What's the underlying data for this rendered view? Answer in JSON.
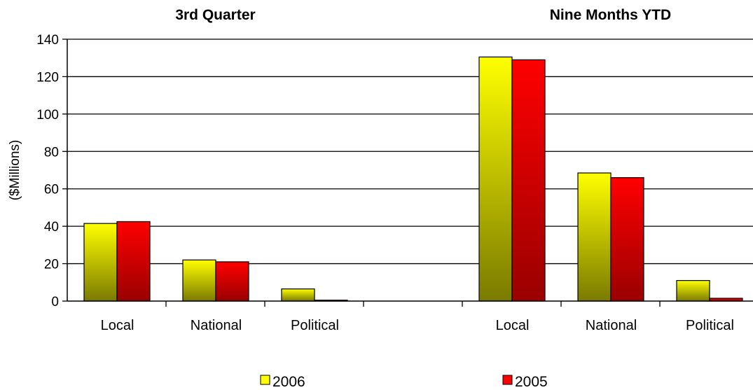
{
  "chart_data": {
    "type": "bar",
    "ylabel": "($Millions)",
    "ylim": [
      0,
      140
    ],
    "yticks": [
      0,
      20,
      40,
      60,
      80,
      100,
      120,
      140
    ],
    "grid": true,
    "legend_position": "bottom",
    "groups": [
      {
        "title": "3rd Quarter",
        "categories": [
          "Local",
          "National",
          "Political"
        ]
      },
      {
        "title": "Nine Months YTD",
        "categories": [
          "Local",
          "National",
          "Political"
        ]
      }
    ],
    "series": [
      {
        "name": "2006",
        "color": "#ffff00",
        "color_dark": "#7a7a00",
        "values": [
          [
            41.5,
            22,
            6.5
          ],
          [
            130.5,
            68.5,
            11
          ]
        ]
      },
      {
        "name": "2005",
        "color": "#ff0000",
        "color_dark": "#990000",
        "values": [
          [
            42.5,
            21,
            0.5
          ],
          [
            129,
            66,
            1.5
          ]
        ]
      }
    ]
  }
}
